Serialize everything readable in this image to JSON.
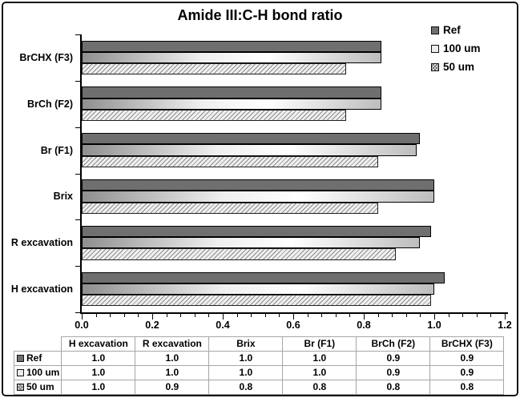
{
  "chart_data": {
    "type": "bar",
    "orientation": "horizontal",
    "title": "Amide III:C-H bond ratio",
    "categories": [
      "BrCHX (F3)",
      "BrCh (F2)",
      "Br (F1)",
      "Brix",
      "R excavation",
      "H excavation"
    ],
    "series": [
      {
        "name": "Ref",
        "key": "ref",
        "values": [
          0.85,
          0.85,
          0.96,
          1.0,
          0.99,
          1.03
        ]
      },
      {
        "name": "100 um",
        "key": "s100",
        "values": [
          0.85,
          0.85,
          0.95,
          1.0,
          0.96,
          1.0
        ]
      },
      {
        "name": "50 um",
        "key": "s50",
        "values": [
          0.75,
          0.75,
          0.84,
          0.84,
          0.89,
          0.99
        ]
      }
    ],
    "xlim": [
      0,
      1.2
    ],
    "x_major_unit": 0.2,
    "x_minor_unit": 0.04,
    "x_tick_labels": [
      "0.0",
      "0.2",
      "0.4",
      "0.6",
      "0.8",
      "1.0",
      "1.2"
    ],
    "grid": false,
    "legend_position": "top-right",
    "table": {
      "col_headers": [
        "H excavation",
        "R excavation",
        "Brix",
        "Br (F1)",
        "BrCh (F2)",
        "BrCHX (F3)"
      ],
      "rows": [
        {
          "label": "Ref",
          "swatch": "ref",
          "values": [
            "1.0",
            "1.0",
            "1.0",
            "1.0",
            "0.9",
            "0.9"
          ]
        },
        {
          "label": "100 um",
          "swatch": "s100",
          "values": [
            "1.0",
            "1.0",
            "1.0",
            "1.0",
            "0.9",
            "0.9"
          ]
        },
        {
          "label": "50 um",
          "swatch": "s50",
          "values": [
            "1.0",
            "0.9",
            "0.8",
            "0.8",
            "0.8",
            "0.8"
          ]
        }
      ]
    }
  },
  "legend": {
    "items": [
      {
        "label": "Ref",
        "swatch": "ref"
      },
      {
        "label": "100 um",
        "swatch": "s100"
      },
      {
        "label": "50 um",
        "swatch": "s50"
      }
    ]
  },
  "colors": {
    "ref_fill": "#6f6f6f",
    "gradient_dark": "#8f8f8f",
    "gradient_light": "#ffffff",
    "gradient_end": "#bdbdbd",
    "hatch_line": "#8d8d8d",
    "hatch_bg": "#efefef",
    "axis": "#000000",
    "table_border": "#a6a6a6",
    "frame": "#151515",
    "background": "#ffffff"
  }
}
